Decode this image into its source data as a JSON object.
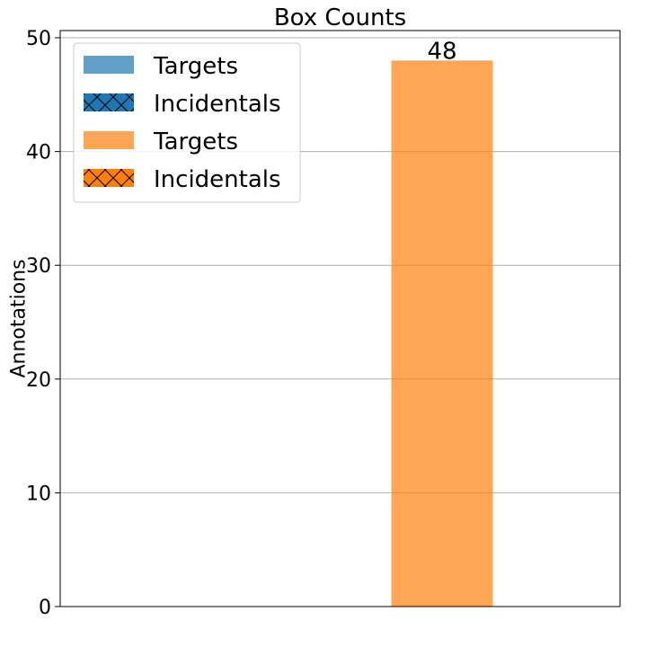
{
  "chart_data": {
    "type": "bar",
    "title": "Box Counts",
    "xlabel": "",
    "ylabel": "Annotations",
    "ylim": [
      0,
      50
    ],
    "yticks": [
      0,
      10,
      20,
      30,
      40,
      50
    ],
    "grid": "y",
    "legend_position": "top-left",
    "series": [
      {
        "name": "Targets",
        "color": "#1f77b4",
        "alpha": 0.7,
        "hatch": false,
        "values": [
          0
        ]
      },
      {
        "name": "Incidentals",
        "color": "#1f77b4",
        "alpha": 1.0,
        "hatch": true,
        "values": [
          0
        ]
      },
      {
        "name": "Targets",
        "color": "#ff7f0e",
        "alpha": 0.7,
        "hatch": false,
        "values": [
          48
        ]
      },
      {
        "name": "Incidentals",
        "color": "#ff7f0e",
        "alpha": 1.0,
        "hatch": true,
        "values": [
          0
        ]
      }
    ],
    "data_labels": [
      {
        "series": 2,
        "text": "48"
      }
    ]
  }
}
